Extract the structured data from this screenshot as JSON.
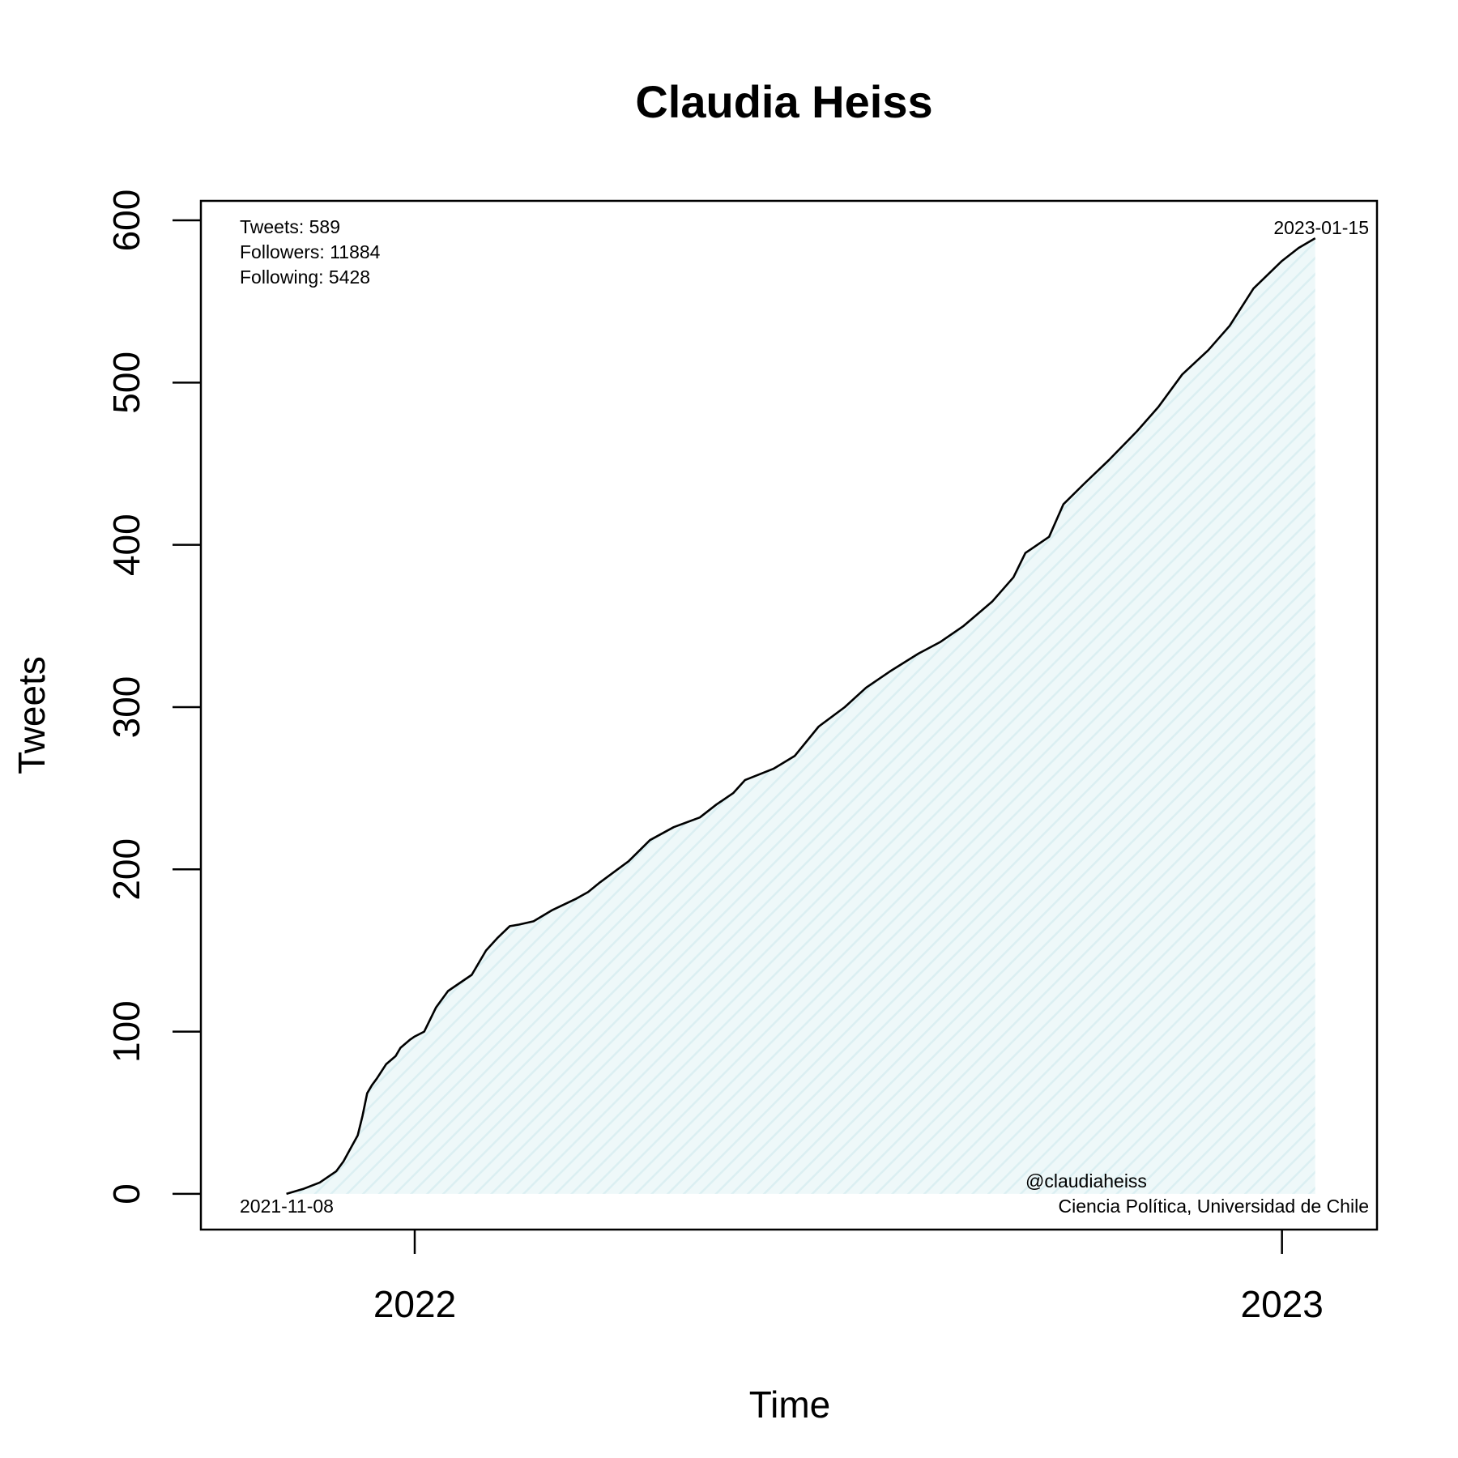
{
  "chart_data": {
    "type": "area",
    "title": "Claudia Heiss",
    "xlabel": "Time",
    "ylabel": "Tweets",
    "x_ticks": [
      "2022",
      "2023"
    ],
    "y_ticks": [
      0,
      100,
      200,
      300,
      400,
      500,
      600
    ],
    "xlim": [
      "2021-10-03",
      "2023-02-10"
    ],
    "ylim": [
      -22,
      612
    ],
    "grid": false,
    "line_color": "#000000",
    "fill_color": "#e3f3f5",
    "series": [
      {
        "x": [
          "2021-11-08",
          "2021-11-15",
          "2021-11-22",
          "2021-11-29",
          "2021-12-02",
          "2021-12-05",
          "2021-12-08",
          "2021-12-10",
          "2021-12-12",
          "2021-12-14",
          "2021-12-16",
          "2021-12-20",
          "2021-12-24",
          "2021-12-26",
          "2021-12-30",
          "2022-01-01",
          "2022-01-05",
          "2022-01-10",
          "2022-01-15",
          "2022-01-20",
          "2022-01-25",
          "2022-01-31",
          "2022-02-05",
          "2022-02-10",
          "2022-02-14",
          "2022-02-20",
          "2022-02-28",
          "2022-03-10",
          "2022-03-15",
          "2022-03-20",
          "2022-04-01",
          "2022-04-10",
          "2022-04-20",
          "2022-05-01",
          "2022-05-08",
          "2022-05-15",
          "2022-05-20",
          "2022-06-01",
          "2022-06-10",
          "2022-06-20",
          "2022-07-01",
          "2022-07-10",
          "2022-07-20",
          "2022-08-01",
          "2022-08-10",
          "2022-08-20",
          "2022-09-01",
          "2022-09-10",
          "2022-09-15",
          "2022-09-25",
          "2022-10-01",
          "2022-10-10",
          "2022-10-20",
          "2022-11-01",
          "2022-11-10",
          "2022-11-20",
          "2022-12-01",
          "2022-12-10",
          "2022-12-20",
          "2023-01-01",
          "2023-01-08",
          "2023-01-15"
        ],
        "y": [
          0,
          3,
          7,
          14,
          20,
          28,
          36,
          48,
          62,
          67,
          71,
          80,
          85,
          90,
          95,
          97,
          100,
          115,
          125,
          130,
          135,
          150,
          158,
          165,
          166,
          168,
          175,
          182,
          186,
          192,
          205,
          218,
          226,
          232,
          240,
          247,
          255,
          262,
          270,
          288,
          300,
          312,
          322,
          333,
          340,
          350,
          365,
          380,
          395,
          405,
          425,
          438,
          452,
          470,
          485,
          505,
          520,
          535,
          558,
          575,
          583,
          589
        ]
      }
    ],
    "annotations": {
      "tweets": "Tweets: 589",
      "followers": "Followers: 11884",
      "following": "Following: 5428",
      "start_date": "2021-11-08",
      "end_date": "2023-01-15",
      "handle": "@claudiaheiss",
      "affiliation": "Ciencia Política, Universidad de Chile"
    }
  }
}
